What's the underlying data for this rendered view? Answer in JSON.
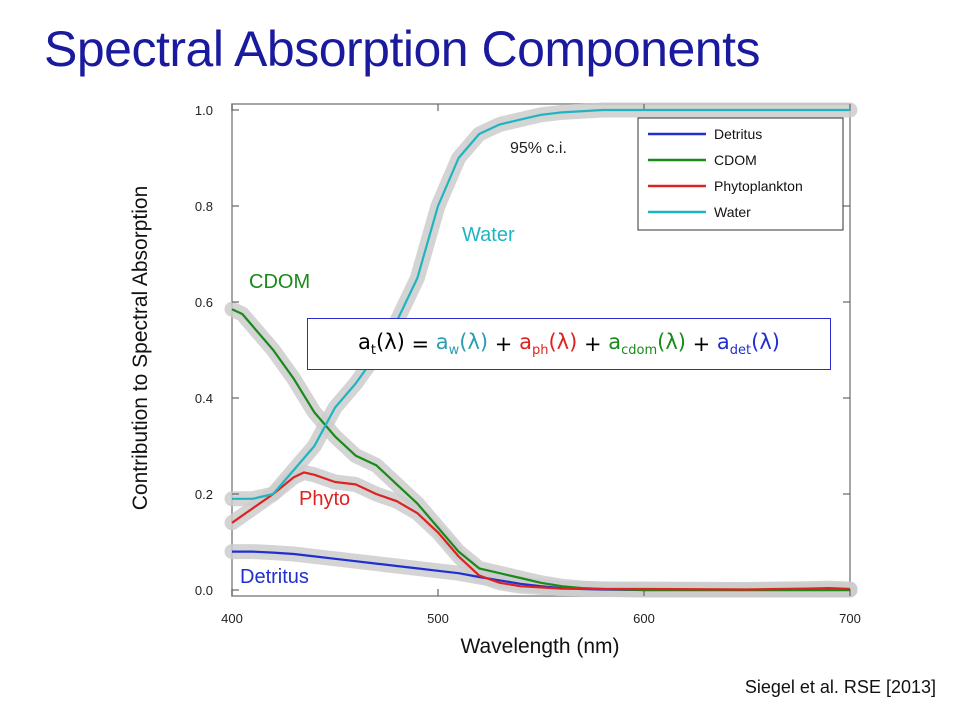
{
  "title": "Spectral Absorption Components",
  "source": "Siegel et al. RSE [2013]",
  "equation": {
    "total": {
      "base": "a",
      "sub": "t",
      "arg": "(λ)",
      "color": "#000000"
    },
    "equals": " = ",
    "plus": " + ",
    "terms": [
      {
        "base": "a",
        "sub": "w",
        "arg": "(λ)",
        "color": "#2a9db0"
      },
      {
        "base": "a",
        "sub": "ph",
        "arg": "(λ)",
        "color": "#dd2222"
      },
      {
        "base": "a",
        "sub": "cdom",
        "arg": "(λ)",
        "color": "#1a8a1a"
      },
      {
        "base": "a",
        "sub": "det",
        "arg": "(λ)",
        "color": "#1f2fd0"
      }
    ]
  },
  "chart_data": {
    "type": "line",
    "xlabel": "Wavelength (nm)",
    "ylabel": "Contribution to Spectral Absorption",
    "xlim": [
      400,
      700
    ],
    "ylim": [
      0,
      1
    ],
    "xticks": [
      "400",
      "500",
      "600",
      "700"
    ],
    "yticks": [
      "0.0",
      "0.2",
      "0.4",
      "0.6",
      "0.8",
      "1.0"
    ],
    "legend_position": "top-right",
    "ci_label": "95% c.i.",
    "ci_color": "#cccccc",
    "series": [
      {
        "name": "Detritus",
        "label": "Detritus",
        "color": "#1f2fd0",
        "x": [
          400,
          410,
          420,
          430,
          440,
          450,
          460,
          470,
          480,
          490,
          500,
          510,
          520,
          530,
          540,
          550,
          560,
          570,
          580,
          600,
          650,
          700
        ],
        "y": [
          0.08,
          0.08,
          0.078,
          0.075,
          0.07,
          0.065,
          0.06,
          0.055,
          0.05,
          0.045,
          0.04,
          0.035,
          0.027,
          0.02,
          0.013,
          0.008,
          0.004,
          0.002,
          0.001,
          0,
          0,
          0
        ]
      },
      {
        "name": "CDOM",
        "label": "CDOM",
        "color": "#1a8a1a",
        "x": [
          400,
          405,
          410,
          420,
          430,
          440,
          450,
          460,
          470,
          480,
          490,
          500,
          510,
          520,
          530,
          540,
          550,
          560,
          570,
          580,
          600,
          650,
          700
        ],
        "y": [
          0.585,
          0.575,
          0.55,
          0.5,
          0.44,
          0.37,
          0.32,
          0.28,
          0.26,
          0.22,
          0.18,
          0.13,
          0.08,
          0.045,
          0.035,
          0.025,
          0.015,
          0.008,
          0.004,
          0.002,
          0,
          0,
          0
        ]
      },
      {
        "name": "Phytoplankton",
        "label": "Phyto",
        "color": "#dd2222",
        "x": [
          400,
          410,
          420,
          430,
          435,
          440,
          450,
          460,
          470,
          480,
          490,
          500,
          510,
          520,
          530,
          540,
          560,
          580,
          600,
          650,
          680,
          690,
          700
        ],
        "y": [
          0.14,
          0.17,
          0.2,
          0.235,
          0.245,
          0.24,
          0.225,
          0.22,
          0.2,
          0.185,
          0.16,
          0.12,
          0.07,
          0.03,
          0.015,
          0.008,
          0.003,
          0.002,
          0.002,
          0.001,
          0.003,
          0.004,
          0.002
        ]
      },
      {
        "name": "Water",
        "label": "Water",
        "color": "#1fb5c0",
        "x": [
          400,
          410,
          420,
          430,
          440,
          450,
          460,
          470,
          480,
          490,
          500,
          510,
          520,
          530,
          540,
          550,
          560,
          580,
          600,
          650,
          700
        ],
        "y": [
          0.19,
          0.19,
          0.2,
          0.25,
          0.3,
          0.38,
          0.43,
          0.49,
          0.56,
          0.65,
          0.8,
          0.9,
          0.95,
          0.97,
          0.98,
          0.99,
          0.995,
          1.0,
          1.0,
          1.0,
          1.0
        ]
      }
    ]
  }
}
